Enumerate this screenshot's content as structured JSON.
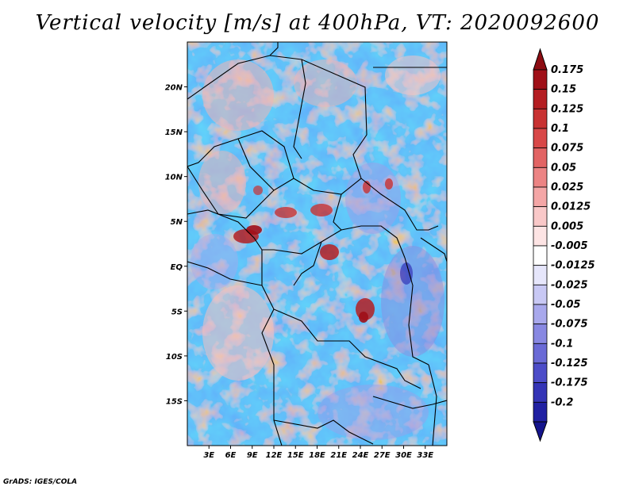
{
  "title": "Vertical velocity [m/s] at 400hPa, VT: 2020092600",
  "credit": "GrADS: IGES/COLA",
  "map": {
    "lon_range": [
      0,
      36
    ],
    "lat_range": [
      -20,
      25
    ],
    "lat_ticks": [
      {
        "value": 20,
        "label": "20N"
      },
      {
        "value": 15,
        "label": "15N"
      },
      {
        "value": 10,
        "label": "10N"
      },
      {
        "value": 5,
        "label": "5N"
      },
      {
        "value": 0,
        "label": "EQ"
      },
      {
        "value": -5,
        "label": "5S"
      },
      {
        "value": -10,
        "label": "10S"
      },
      {
        "value": -15,
        "label": "15S"
      }
    ],
    "lon_ticks": [
      {
        "value": 3,
        "label": "3E"
      },
      {
        "value": 6,
        "label": "6E"
      },
      {
        "value": 9,
        "label": "9E"
      },
      {
        "value": 12,
        "label": "12E"
      },
      {
        "value": 15,
        "label": "15E"
      },
      {
        "value": 18,
        "label": "18E"
      },
      {
        "value": 21,
        "label": "21E"
      },
      {
        "value": 24,
        "label": "24E"
      },
      {
        "value": 27,
        "label": "27E"
      },
      {
        "value": 30,
        "label": "30E"
      },
      {
        "value": 33,
        "label": "33E"
      }
    ]
  },
  "colorbar": {
    "levels": [
      {
        "label": "0.175",
        "color": "#a01018"
      },
      {
        "label": "0.15",
        "color": "#b41e22"
      },
      {
        "label": "0.125",
        "color": "#c83232"
      },
      {
        "label": "0.1",
        "color": "#d84848"
      },
      {
        "label": "0.075",
        "color": "#e26464"
      },
      {
        "label": "0.05",
        "color": "#ec8484"
      },
      {
        "label": "0.025",
        "color": "#f4a6a6"
      },
      {
        "label": "0.0125",
        "color": "#f9c8c8"
      },
      {
        "label": "0.005",
        "color": "#fde4e4"
      },
      {
        "label": "-0.005",
        "color": "#ffffff"
      },
      {
        "label": "-0.0125",
        "color": "#e6e6fb"
      },
      {
        "label": "-0.025",
        "color": "#c8c8f4"
      },
      {
        "label": "-0.05",
        "color": "#a8a8ec"
      },
      {
        "label": "-0.075",
        "color": "#8888e2"
      },
      {
        "label": "-0.1",
        "color": "#6a6ad6"
      },
      {
        "label": "-0.125",
        "color": "#4c4cc8"
      },
      {
        "label": "-0.175",
        "color": "#3434b6"
      },
      {
        "label": "-0.2",
        "color": "#2020a2"
      }
    ],
    "top_cap_color": "#8c0c12",
    "bottom_cap_color": "#14148c"
  }
}
